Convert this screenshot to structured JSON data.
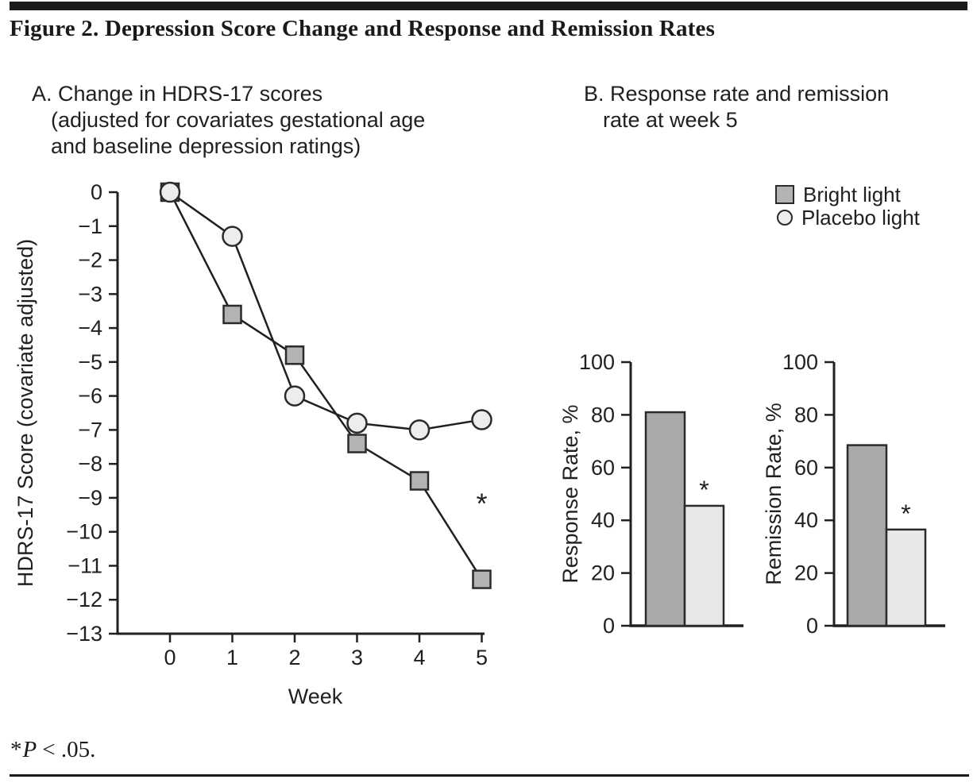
{
  "figure": {
    "title": "Figure 2. Depression Score Change and Response and Remission Rates",
    "footnote": {
      "asterisk": "*",
      "p": "P",
      "rest": "< .05."
    }
  },
  "panel_a": {
    "lines": [
      "A. Change in HDRS-17 scores",
      "(adjusted for covariates gestational age",
      "and baseline depression  ratings)"
    ]
  },
  "panel_b": {
    "lines": [
      "B. Response rate and remission",
      "rate at week 5"
    ]
  },
  "legend": {
    "items": [
      {
        "label": "Bright light",
        "marker": "square",
        "fill": "#b3b3b3"
      },
      {
        "label": "Placebo light",
        "marker": "circle",
        "fill": "#ededed"
      }
    ]
  },
  "colors": {
    "ink": "#231f20",
    "axis": "#231f20",
    "marker_stroke": "#2b2b2b",
    "bright_fill": "#a9a9a9",
    "placebo_fill": "#e8e8e8"
  },
  "chart_data": [
    {
      "type": "line",
      "panel": "A",
      "x": [
        0,
        1,
        2,
        3,
        4,
        5
      ],
      "xticks": [
        "0",
        "1",
        "2",
        "3",
        "4",
        "5"
      ],
      "xlabel": "Week",
      "ylabel": "HDRS-17 Score (covariate adjusted)",
      "ylim": [
        -13,
        0
      ],
      "ytick_values": [
        0,
        -1,
        -2,
        -3,
        -4,
        -5,
        -6,
        -7,
        -8,
        -9,
        -10,
        -11,
        -12,
        -13
      ],
      "yticks": [
        "0",
        "−1",
        "−2",
        "−3",
        "−4",
        "−5",
        "−6",
        "−7",
        "−8",
        "−9",
        "−10",
        "−11",
        "−12",
        "−13"
      ],
      "grid": false,
      "series": [
        {
          "name": "Bright light",
          "marker": "square",
          "fill": "#b3b3b3",
          "values": [
            0,
            -3.6,
            -4.8,
            -7.4,
            -8.5,
            -11.4
          ]
        },
        {
          "name": "Placebo light",
          "marker": "circle",
          "fill": "#ededed",
          "values": [
            0,
            -1.3,
            -6.0,
            -6.8,
            -7.0,
            -6.7
          ]
        }
      ],
      "annotations": [
        {
          "text": "*",
          "x": 5,
          "y": -9.2
        }
      ]
    },
    {
      "type": "bar",
      "panel": "B",
      "ylabel": "Response Rate, %",
      "ylim": [
        0,
        100
      ],
      "ytick_values": [
        0,
        20,
        40,
        60,
        80,
        100
      ],
      "yticks": [
        "0",
        "20",
        "40",
        "60",
        "80",
        "100"
      ],
      "categories": [
        "Bright light",
        "Placebo light"
      ],
      "values": [
        81,
        45.5
      ],
      "fills": [
        "#a9a9a9",
        "#e8e8e8"
      ],
      "annotation": {
        "text": "*",
        "on": "Placebo light"
      }
    },
    {
      "type": "bar",
      "panel": "B",
      "ylabel": "Remission Rate, %",
      "ylim": [
        0,
        100
      ],
      "ytick_values": [
        0,
        20,
        40,
        60,
        80,
        100
      ],
      "yticks": [
        "0",
        "20",
        "40",
        "60",
        "80",
        "100"
      ],
      "categories": [
        "Bright light",
        "Placebo light"
      ],
      "values": [
        68.5,
        36.5
      ],
      "fills": [
        "#a9a9a9",
        "#e8e8e8"
      ],
      "annotation": {
        "text": "*",
        "on": "Placebo light"
      }
    }
  ]
}
